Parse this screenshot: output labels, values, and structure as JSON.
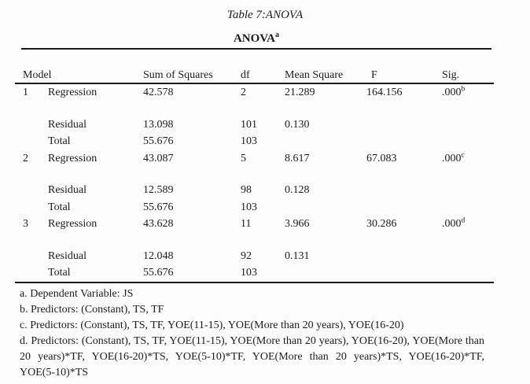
{
  "page": {
    "caption": "Table 7:ANOVA"
  },
  "table": {
    "heading": {
      "text": "ANOVA",
      "superscript": "a"
    },
    "columns": {
      "model": "Model",
      "sum_of_squares": "Sum of Squares",
      "df": "df",
      "mean_square": "Mean Square",
      "f": "F",
      "sig": "Sig."
    },
    "rows": [
      {
        "model_no": "1",
        "term": "Regression",
        "sum_of_squares": "42.578",
        "df": "2",
        "mean_square": "21.289",
        "f": "164.156",
        "sig": ".000",
        "sig_note": "b"
      },
      {
        "model_no": "",
        "term": "Residual",
        "sum_of_squares": "13.098",
        "df": "101",
        "mean_square": "0.130",
        "f": "",
        "sig": "",
        "sig_note": ""
      },
      {
        "model_no": "",
        "term": "Total",
        "sum_of_squares": "55.676",
        "df": "103",
        "mean_square": "",
        "f": "",
        "sig": "",
        "sig_note": ""
      },
      {
        "model_no": "2",
        "term": "Regression",
        "sum_of_squares": "43.087",
        "df": "5",
        "mean_square": "8.617",
        "f": "67.083",
        "sig": ".000",
        "sig_note": "c"
      },
      {
        "model_no": "",
        "term": "Residual",
        "sum_of_squares": "12.589",
        "df": "98",
        "mean_square": "0.128",
        "f": "",
        "sig": "",
        "sig_note": ""
      },
      {
        "model_no": "",
        "term": "Total",
        "sum_of_squares": "55.676",
        "df": "103",
        "mean_square": "",
        "f": "",
        "sig": "",
        "sig_note": ""
      },
      {
        "model_no": "3",
        "term": "Regression",
        "sum_of_squares": "43.628",
        "df": "11",
        "mean_square": "3.966",
        "f": "30.286",
        "sig": ".000",
        "sig_note": "d"
      },
      {
        "model_no": "",
        "term": "Residual",
        "sum_of_squares": "12.048",
        "df": "92",
        "mean_square": "0.131",
        "f": "",
        "sig": "",
        "sig_note": ""
      },
      {
        "model_no": "",
        "term": "Total",
        "sum_of_squares": "55.676",
        "df": "103",
        "mean_square": "",
        "f": "",
        "sig": "",
        "sig_note": ""
      }
    ],
    "footnotes": [
      "a. Dependent Variable: JS",
      "b. Predictors: (Constant), TS, TF",
      "c. Predictors: (Constant), TS, TF, YOE(11-15), YOE(More than 20 years), YOE(16-20)",
      "d. Predictors: (Constant), TS, TF, YOE(11-15), YOE(More than 20 years), YOE(16-20), YOE(More than 20 years)*TF, YOE(16-20)*TS, YOE(5-10)*TF, YOE(More than 20 years)*TS, YOE(16-20)*TF, YOE(5-10)*TS"
    ]
  },
  "colors": {
    "background": "#fdfdfd",
    "text": "#1b1b1b",
    "rule": "#191919"
  }
}
